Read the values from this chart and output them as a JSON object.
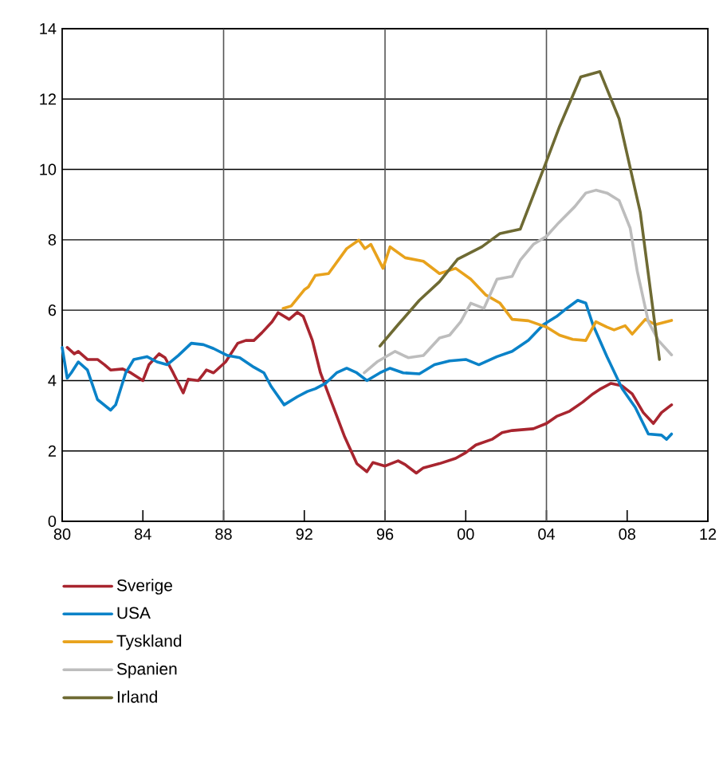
{
  "chart_data": {
    "type": "line",
    "xlim": [
      1980,
      2012
    ],
    "ylim": [
      0,
      14
    ],
    "xticks": [
      {
        "value": 1980,
        "label": "80"
      },
      {
        "value": 1984,
        "label": "84"
      },
      {
        "value": 1988,
        "label": "88"
      },
      {
        "value": 1992,
        "label": "92"
      },
      {
        "value": 1996,
        "label": "96"
      },
      {
        "value": 2000,
        "label": "00"
      },
      {
        "value": 2004,
        "label": "04"
      },
      {
        "value": 2008,
        "label": "08"
      },
      {
        "value": 2012,
        "label": "12"
      }
    ],
    "yticks": [
      0,
      2,
      4,
      6,
      8,
      10,
      12,
      14
    ],
    "grid": "y",
    "legend": "bottom",
    "marker": "none",
    "line_style": "solid",
    "ref_lines": [
      {
        "axis": "x",
        "value": 1988,
        "color": "#555555"
      },
      {
        "axis": "x",
        "value": 1996,
        "color": "#555555"
      },
      {
        "axis": "x",
        "value": 2004,
        "color": "#555555"
      }
    ],
    "series": [
      {
        "name": "Sverige",
        "color": "#a8252f",
        "x": [
          1980.25,
          1980.6,
          1980.8,
          1981.25,
          1981.75,
          1982.1,
          1982.4,
          1983,
          1983.4,
          1984,
          1984.3,
          1984.8,
          1985.1,
          1985.5,
          1986,
          1986.25,
          1986.75,
          1987.15,
          1987.5,
          1988.1,
          1988.7,
          1989.1,
          1989.5,
          1989.9,
          1990.4,
          1990.7,
          1991.25,
          1991.65,
          1991.95,
          1992.4,
          1992.8,
          1993.3,
          1994,
          1994.6,
          1995.1,
          1995.4,
          1996,
          1996.65,
          1997,
          1997.55,
          1997.9,
          1998.7,
          1999.5,
          2000,
          2000.5,
          2001.3,
          2001.8,
          2002.3,
          2003.35,
          2004,
          2004.5,
          2005.15,
          2005.8,
          2006.3,
          2006.7,
          2007.2,
          2007.75,
          2008.25,
          2008.8,
          2009.3,
          2009.7,
          2010.2
        ],
        "values": [
          4.94,
          4.76,
          4.83,
          4.6,
          4.6,
          4.45,
          4.3,
          4.33,
          4.22,
          4.0,
          4.45,
          4.76,
          4.65,
          4.22,
          3.65,
          4.04,
          4.0,
          4.3,
          4.22,
          4.53,
          5.06,
          5.14,
          5.14,
          5.36,
          5.67,
          5.93,
          5.74,
          5.94,
          5.82,
          5.14,
          4.22,
          3.46,
          2.4,
          1.64,
          1.41,
          1.67,
          1.57,
          1.72,
          1.61,
          1.37,
          1.52,
          1.64,
          1.79,
          1.95,
          2.17,
          2.33,
          2.52,
          2.58,
          2.63,
          2.78,
          2.98,
          3.13,
          3.39,
          3.62,
          3.77,
          3.92,
          3.85,
          3.62,
          3.09,
          2.78,
          3.09,
          3.31
        ]
      },
      {
        "name": "USA",
        "color": "#0a82c8",
        "x": [
          1980,
          1980.25,
          1980.45,
          1980.8,
          1981.25,
          1981.75,
          1982.4,
          1982.65,
          1983.15,
          1983.55,
          1984.2,
          1984.7,
          1985.2,
          1985.75,
          1986.4,
          1987,
          1987.5,
          1988.2,
          1988.8,
          1989.5,
          1990,
          1990.35,
          1991,
          1991.65,
          1992.15,
          1992.55,
          1993.05,
          1993.6,
          1994.1,
          1994.6,
          1995.1,
          1995.75,
          1996.25,
          1996.9,
          1997.7,
          1998.45,
          1999.2,
          2000,
          2000.65,
          2001.55,
          2002.3,
          2003.1,
          2003.85,
          2004.5,
          2005,
          2005.55,
          2005.95,
          2006.3,
          2007,
          2007.75,
          2008.4,
          2009.05,
          2009.7,
          2009.95,
          2010.2
        ],
        "values": [
          4.94,
          4.07,
          4.22,
          4.53,
          4.3,
          3.46,
          3.16,
          3.31,
          4.22,
          4.6,
          4.68,
          4.53,
          4.45,
          4.71,
          5.06,
          5.02,
          4.91,
          4.71,
          4.65,
          4.38,
          4.22,
          3.84,
          3.31,
          3.54,
          3.69,
          3.77,
          3.92,
          4.22,
          4.35,
          4.22,
          4.0,
          4.22,
          4.35,
          4.22,
          4.19,
          4.45,
          4.56,
          4.6,
          4.45,
          4.68,
          4.83,
          5.14,
          5.59,
          5.82,
          6.05,
          6.28,
          6.2,
          5.59,
          4.68,
          3.77,
          3.24,
          2.48,
          2.45,
          2.33,
          2.48
        ]
      },
      {
        "name": "Tyskland",
        "color": "#e8a21c",
        "x": [
          1990.95,
          1991.35,
          1992,
          1992.2,
          1992.55,
          1993.2,
          1994.1,
          1994.7,
          1995,
          1995.3,
          1995.9,
          1996.25,
          1997,
          1997.9,
          1998.7,
          1999.5,
          2000.25,
          2001,
          2001.7,
          2002.3,
          2003.1,
          2004,
          2004.65,
          2005.3,
          2005.95,
          2006.45,
          2007,
          2007.35,
          2007.9,
          2008.25,
          2008.9,
          2009.4,
          2010.2
        ],
        "values": [
          6.05,
          6.12,
          6.58,
          6.66,
          6.99,
          7.04,
          7.75,
          7.99,
          7.75,
          7.87,
          7.19,
          7.8,
          7.49,
          7.39,
          7.04,
          7.19,
          6.88,
          6.43,
          6.2,
          5.74,
          5.7,
          5.52,
          5.29,
          5.17,
          5.14,
          5.67,
          5.52,
          5.44,
          5.56,
          5.32,
          5.74,
          5.59,
          5.71
        ]
      },
      {
        "name": "Spanien",
        "color": "#bdbdbd",
        "x": [
          1994.97,
          1995.6,
          1996.5,
          1997.15,
          1997.9,
          1998.7,
          1999.2,
          1999.75,
          2000.25,
          2000.9,
          2001.55,
          2002.3,
          2002.7,
          2003.35,
          2004,
          2004.6,
          2005.4,
          2005.95,
          2006.45,
          2007,
          2007.6,
          2008.15,
          2008.5,
          2009.05,
          2009.55,
          2010.2
        ],
        "values": [
          4.22,
          4.53,
          4.83,
          4.65,
          4.71,
          5.21,
          5.29,
          5.67,
          6.2,
          6.05,
          6.88,
          6.96,
          7.42,
          7.87,
          8.1,
          8.48,
          8.94,
          9.33,
          9.41,
          9.33,
          9.12,
          8.33,
          7.11,
          5.67,
          5.14,
          4.73
        ]
      },
      {
        "name": "Irland",
        "color": "#6e6a33",
        "x": [
          1995.75,
          1996.65,
          1997.7,
          1998.7,
          1999.6,
          2000.8,
          2001.7,
          2002.7,
          2004,
          2004.65,
          2005.7,
          2006.65,
          2007.6,
          2008.65,
          2009.6
        ],
        "values": [
          4.98,
          5.59,
          6.28,
          6.81,
          7.45,
          7.8,
          8.18,
          8.3,
          10.23,
          11.22,
          12.63,
          12.78,
          11.44,
          8.78,
          4.6
        ]
      }
    ]
  }
}
